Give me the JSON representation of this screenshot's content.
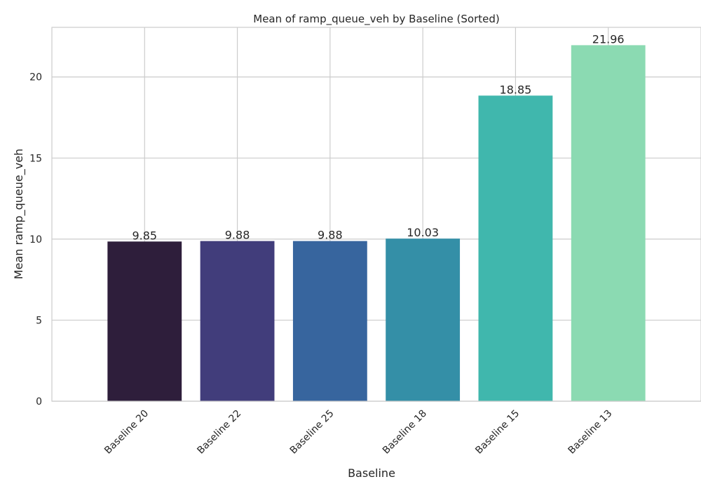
{
  "chart_data": {
    "type": "bar",
    "title": "Mean of ramp_queue_veh by Baseline (Sorted)",
    "xlabel": "Baseline",
    "ylabel": "Mean ramp_queue_veh",
    "categories": [
      "Baseline 20",
      "Baseline 22",
      "Baseline 25",
      "Baseline 18",
      "Baseline 15",
      "Baseline 13"
    ],
    "values": [
      9.85,
      9.88,
      9.88,
      10.03,
      18.85,
      21.96
    ],
    "value_labels": [
      "9.85",
      "9.88",
      "9.88",
      "10.03",
      "18.85",
      "21.96"
    ],
    "colors": [
      "#2e1e3b",
      "#413d7b",
      "#37659e",
      "#348fa7",
      "#40b7ad",
      "#8bdab2"
    ],
    "ylim": [
      0,
      23.06
    ],
    "yticks": [
      0,
      5,
      10,
      15,
      20
    ],
    "grid": true,
    "legend": "none"
  }
}
